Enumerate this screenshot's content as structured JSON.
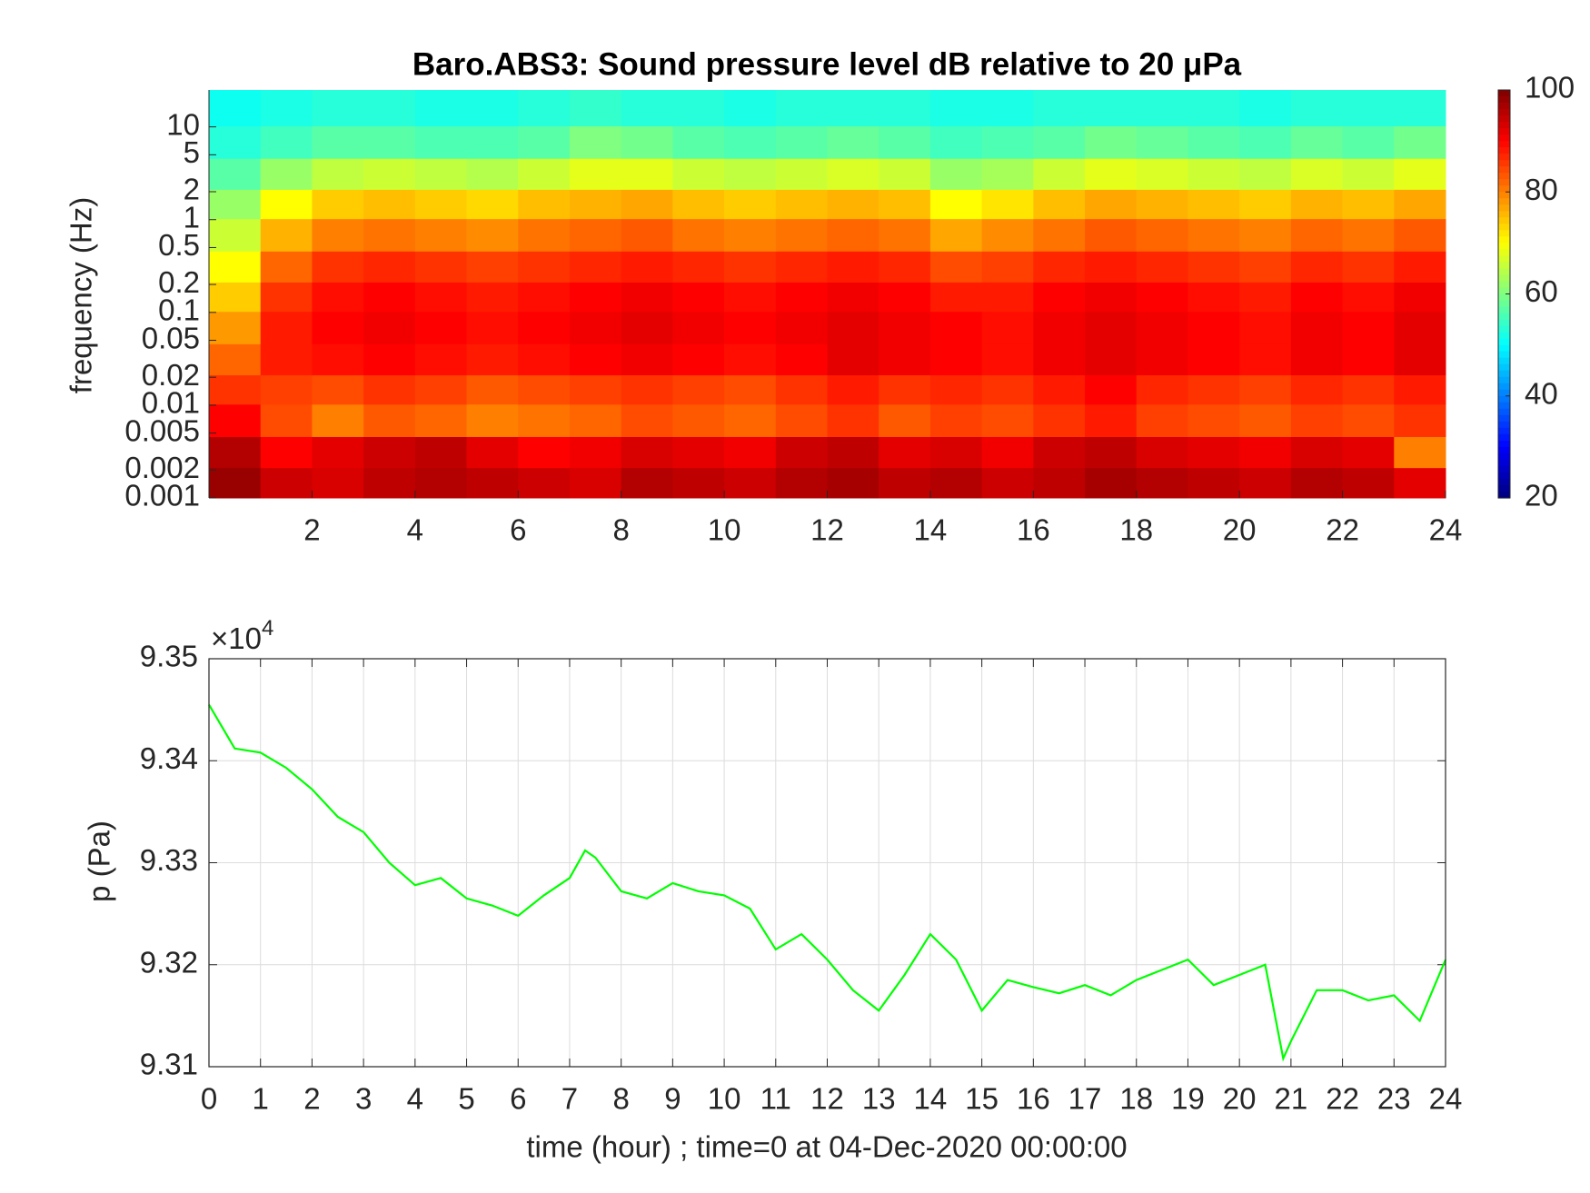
{
  "chart_data": [
    {
      "type": "heatmap",
      "title": "Baro.ABS3: Sound pressure level dB relative to 20 μPa",
      "ylabel": "frequency (Hz)",
      "colormap": "jet",
      "ylog": true,
      "xlim": [
        0,
        24
      ],
      "ylim": [
        0.001,
        25
      ],
      "xticks": [
        2,
        4,
        6,
        8,
        10,
        12,
        14,
        16,
        18,
        20,
        22,
        24
      ],
      "yticks": [
        0.001,
        0.002,
        0.005,
        0.01,
        0.02,
        0.05,
        0.1,
        0.2,
        0.5,
        1,
        2,
        5,
        10
      ],
      "clim": [
        20,
        100
      ],
      "cticks": [
        20,
        40,
        60,
        80,
        100
      ],
      "x": [
        0.5,
        1.5,
        2.5,
        3.5,
        4.5,
        5.5,
        6.5,
        7.5,
        8.5,
        9.5,
        10.5,
        11.5,
        12.5,
        13.5,
        14.5,
        15.5,
        16.5,
        17.5,
        18.5,
        19.5,
        20.5,
        21.5,
        22.5,
        23.5
      ],
      "y": [
        0.0015,
        0.003,
        0.007,
        0.015,
        0.03,
        0.07,
        0.15,
        0.3,
        0.7,
        1.5,
        3,
        7,
        15
      ],
      "z": [
        [
          98,
          94,
          93,
          95,
          96,
          95,
          94,
          93,
          96,
          95,
          94,
          96,
          97,
          95,
          96,
          94,
          95,
          97,
          96,
          95,
          94,
          96,
          95,
          92
        ],
        [
          96,
          90,
          92,
          94,
          95,
          92,
          90,
          91,
          93,
          92,
          91,
          94,
          95,
          92,
          93,
          91,
          94,
          95,
          93,
          92,
          91,
          93,
          92,
          80
        ],
        [
          90,
          84,
          80,
          83,
          82,
          80,
          81,
          82,
          84,
          83,
          82,
          84,
          86,
          83,
          85,
          84,
          86,
          88,
          85,
          84,
          83,
          85,
          84,
          86
        ],
        [
          86,
          85,
          84,
          86,
          85,
          83,
          84,
          85,
          86,
          85,
          84,
          86,
          88,
          86,
          87,
          86,
          88,
          90,
          87,
          86,
          85,
          87,
          86,
          88
        ],
        [
          82,
          88,
          89,
          90,
          89,
          88,
          89,
          90,
          91,
          90,
          89,
          90,
          92,
          91,
          90,
          89,
          91,
          92,
          91,
          90,
          89,
          91,
          90,
          92
        ],
        [
          78,
          88,
          90,
          91,
          90,
          89,
          90,
          91,
          92,
          91,
          90,
          91,
          92,
          91,
          90,
          89,
          91,
          92,
          91,
          90,
          89,
          91,
          90,
          92
        ],
        [
          74,
          86,
          89,
          90,
          89,
          88,
          89,
          90,
          91,
          90,
          89,
          90,
          91,
          90,
          88,
          88,
          90,
          91,
          90,
          89,
          88,
          90,
          89,
          91
        ],
        [
          70,
          82,
          86,
          87,
          86,
          85,
          86,
          87,
          88,
          87,
          86,
          87,
          88,
          87,
          84,
          85,
          87,
          88,
          87,
          86,
          85,
          87,
          86,
          88
        ],
        [
          66,
          76,
          80,
          81,
          80,
          79,
          81,
          82,
          83,
          81,
          80,
          81,
          82,
          81,
          77,
          79,
          81,
          83,
          82,
          81,
          80,
          82,
          81,
          83
        ],
        [
          62,
          70,
          74,
          75,
          74,
          73,
          75,
          76,
          77,
          75,
          74,
          75,
          76,
          75,
          70,
          72,
          75,
          77,
          76,
          75,
          74,
          76,
          75,
          77
        ],
        [
          57,
          62,
          65,
          66,
          65,
          64,
          66,
          68,
          68,
          66,
          65,
          66,
          67,
          66,
          62,
          63,
          66,
          68,
          67,
          66,
          65,
          67,
          66,
          68
        ],
        [
          53,
          55,
          57,
          57,
          56,
          56,
          57,
          60,
          59,
          57,
          56,
          57,
          58,
          57,
          55,
          56,
          57,
          59,
          58,
          57,
          56,
          58,
          57,
          59
        ],
        [
          51,
          52,
          53,
          53,
          52,
          52,
          53,
          54,
          53,
          53,
          52,
          53,
          53,
          53,
          52,
          52,
          53,
          53,
          53,
          53,
          52,
          53,
          53,
          53
        ]
      ]
    },
    {
      "type": "line",
      "xlabel": "time (hour) ; time=0 at 04-Dec-2020 00:00:00",
      "ylabel": "p (Pa)",
      "y_exponent_base": "×10",
      "y_exponent": "4",
      "color": "#00ff00",
      "grid": true,
      "xlim": [
        0,
        24
      ],
      "ylim": [
        93100,
        93500
      ],
      "xticks": [
        0,
        1,
        2,
        3,
        4,
        5,
        6,
        7,
        8,
        9,
        10,
        11,
        12,
        13,
        14,
        15,
        16,
        17,
        18,
        19,
        20,
        21,
        22,
        23,
        24
      ],
      "yticks": [
        {
          "value": 93100,
          "label": "9.31"
        },
        {
          "value": 93200,
          "label": "9.32"
        },
        {
          "value": 93300,
          "label": "9.33"
        },
        {
          "value": 93400,
          "label": "9.34"
        },
        {
          "value": 93500,
          "label": "9.35"
        }
      ],
      "x": [
        0,
        0.5,
        1,
        1.5,
        2,
        2.5,
        3,
        3.5,
        4,
        4.5,
        5,
        5.5,
        6,
        6.5,
        7,
        7.3,
        7.5,
        8,
        8.5,
        9,
        9.5,
        10,
        10.5,
        11,
        11.5,
        12,
        12.5,
        13,
        13.5,
        14,
        14.5,
        15,
        15.5,
        16,
        16.5,
        17,
        17.5,
        18,
        18.5,
        19,
        19.5,
        20,
        20.5,
        20.85,
        21,
        21.5,
        22,
        22.5,
        23,
        23.5,
        24
      ],
      "values": [
        93455,
        93412,
        93408,
        93393,
        93372,
        93345,
        93330,
        93300,
        93278,
        93285,
        93265,
        93258,
        93248,
        93268,
        93285,
        93312,
        93305,
        93272,
        93265,
        93280,
        93272,
        93268,
        93255,
        93215,
        93230,
        93205,
        93175,
        93155,
        93190,
        93230,
        93205,
        93155,
        93185,
        93178,
        93172,
        93180,
        93170,
        93185,
        93195,
        93205,
        93180,
        93190,
        93200,
        93108,
        93125,
        93175,
        93175,
        93165,
        93170,
        93145,
        93205
      ]
    }
  ]
}
